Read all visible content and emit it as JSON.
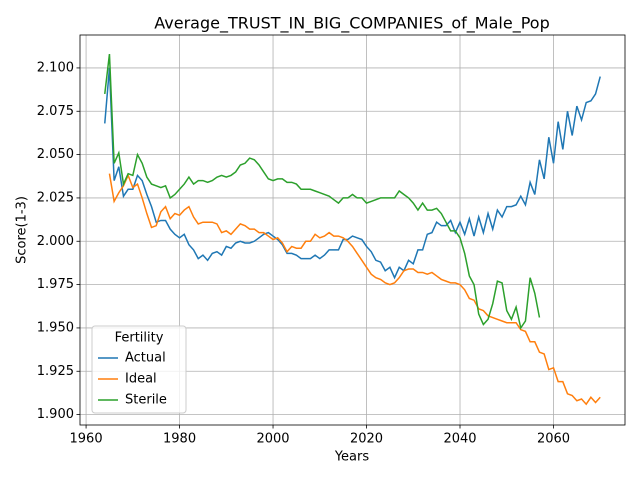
{
  "chart_data": {
    "type": "line",
    "title": "Average_TRUST_IN_BIG_COMPANIES_of_Male_Pop",
    "x_label": "Years",
    "y_label": "Score(1-3)",
    "legend_title": "Fertility",
    "legend_position": "lower left",
    "grid": true,
    "x": [
      1964,
      1965,
      1966,
      1967,
      1968,
      1969,
      1970,
      1971,
      1972,
      1973,
      1974,
      1975,
      1976,
      1977,
      1978,
      1979,
      1980,
      1981,
      1982,
      1983,
      1984,
      1985,
      1986,
      1987,
      1988,
      1989,
      1990,
      1991,
      1992,
      1993,
      1994,
      1995,
      1996,
      1997,
      1998,
      1999,
      2000,
      2001,
      2002,
      2003,
      2004,
      2005,
      2006,
      2007,
      2008,
      2009,
      2010,
      2011,
      2012,
      2013,
      2014,
      2015,
      2016,
      2017,
      2018,
      2019,
      2020,
      2021,
      2022,
      2023,
      2024,
      2025,
      2026,
      2027,
      2028,
      2029,
      2030,
      2031,
      2032,
      2033,
      2034,
      2035,
      2036,
      2037,
      2038,
      2039,
      2040,
      2041,
      2042,
      2043,
      2044,
      2045,
      2046,
      2047,
      2048,
      2049,
      2050,
      2051,
      2052,
      2053,
      2054,
      2055,
      2056,
      2057,
      2058,
      2059,
      2060,
      2061,
      2062,
      2063,
      2064,
      2065,
      2066,
      2067,
      2068,
      2069,
      2070
    ],
    "series": [
      {
        "name": "Actual",
        "color": "#1f77b4",
        "values": [
          2.068,
          2.1,
          2.035,
          2.043,
          2.026,
          2.03,
          2.03,
          2.038,
          2.035,
          2.027,
          2.02,
          2.011,
          2.012,
          2.012,
          2.007,
          2.004,
          2.002,
          2.004,
          1.998,
          1.995,
          1.99,
          1.992,
          1.989,
          1.993,
          1.994,
          1.992,
          1.997,
          1.996,
          1.999,
          2.0,
          1.999,
          1.999,
          2.0,
          2.002,
          2.004,
          2.005,
          2.003,
          2.001,
          1.998,
          1.993,
          1.993,
          1.992,
          1.99,
          1.99,
          1.99,
          1.992,
          1.99,
          1.992,
          1.995,
          1.995,
          1.995,
          2.001,
          2.001,
          2.003,
          2.002,
          2.001,
          1.997,
          1.994,
          1.989,
          1.988,
          1.983,
          1.985,
          1.979,
          1.985,
          1.983,
          1.989,
          1.987,
          1.995,
          1.995,
          2.004,
          2.005,
          2.011,
          2.009,
          2.009,
          2.012,
          2.005,
          2.011,
          2.004,
          2.013,
          2.003,
          2.014,
          2.005,
          2.016,
          2.007,
          2.018,
          2.014,
          2.02,
          2.02,
          2.021,
          2.026,
          2.021,
          2.034,
          2.027,
          2.047,
          2.036,
          2.06,
          2.045,
          2.069,
          2.053,
          2.075,
          2.061,
          2.078,
          2.07,
          2.08,
          2.081,
          2.085,
          2.095
        ]
      },
      {
        "name": "Ideal",
        "color": "#ff7f0e",
        "values": [
          null,
          2.039,
          2.023,
          2.028,
          2.032,
          2.038,
          2.031,
          2.033,
          2.025,
          2.016,
          2.008,
          2.009,
          2.017,
          2.02,
          2.013,
          2.016,
          2.015,
          2.018,
          2.02,
          2.014,
          2.01,
          2.011,
          2.011,
          2.011,
          2.01,
          2.005,
          2.006,
          2.004,
          2.007,
          2.01,
          2.009,
          2.007,
          2.007,
          2.005,
          2.005,
          2.003,
          2.001,
          2.002,
          1.999,
          1.994,
          1.997,
          1.996,
          1.996,
          2.0,
          2.0,
          2.004,
          2.002,
          2.003,
          2.005,
          2.003,
          2.003,
          2.002,
          2.0,
          1.997,
          1.993,
          1.989,
          1.985,
          1.981,
          1.979,
          1.978,
          1.976,
          1.975,
          1.976,
          1.979,
          1.983,
          1.984,
          1.984,
          1.982,
          1.982,
          1.981,
          1.982,
          1.98,
          1.978,
          1.977,
          1.976,
          1.976,
          1.975,
          1.972,
          1.967,
          1.966,
          1.961,
          1.96,
          1.957,
          1.956,
          1.955,
          1.954,
          1.953,
          1.953,
          1.953,
          1.949,
          1.948,
          1.942,
          1.942,
          1.936,
          1.935,
          1.926,
          1.927,
          1.919,
          1.919,
          1.912,
          1.911,
          1.908,
          1.909,
          1.906,
          1.91,
          1.907,
          1.91
        ]
      },
      {
        "name": "Sterile",
        "color": "#2ca02c",
        "values": [
          2.085,
          2.108,
          2.045,
          2.051,
          2.033,
          2.039,
          2.038,
          2.05,
          2.045,
          2.037,
          2.033,
          2.032,
          2.031,
          2.032,
          2.025,
          2.027,
          2.03,
          2.033,
          2.037,
          2.033,
          2.035,
          2.035,
          2.034,
          2.035,
          2.037,
          2.038,
          2.037,
          2.038,
          2.04,
          2.044,
          2.045,
          2.048,
          2.047,
          2.044,
          2.04,
          2.036,
          2.035,
          2.036,
          2.036,
          2.034,
          2.034,
          2.033,
          2.03,
          2.03,
          2.03,
          2.029,
          2.028,
          2.027,
          2.026,
          2.024,
          2.022,
          2.025,
          2.025,
          2.027,
          2.025,
          2.025,
          2.022,
          2.023,
          2.024,
          2.025,
          2.025,
          2.025,
          2.025,
          2.029,
          2.027,
          2.025,
          2.022,
          2.018,
          2.022,
          2.018,
          2.018,
          2.019,
          2.016,
          2.011,
          2.006,
          2.006,
          2.002,
          1.993,
          1.98,
          1.975,
          1.958,
          1.952,
          1.955,
          1.964,
          1.977,
          1.976,
          1.96,
          1.955,
          1.962,
          1.95,
          1.954,
          1.979,
          1.97,
          1.956,
          null,
          null,
          null,
          null,
          null,
          null,
          null,
          null,
          null,
          null,
          null,
          null,
          null
        ]
      }
    ],
    "xlim": [
      1958.7,
      2075.3
    ],
    "xticks": [
      1960,
      1980,
      2000,
      2020,
      2040,
      2060
    ],
    "ylim": [
      1.894,
      2.119
    ],
    "yticks": [
      {
        "value": 1.9,
        "label": "1.900"
      },
      {
        "value": 1.925,
        "label": "1.925"
      },
      {
        "value": 1.95,
        "label": "1.950"
      },
      {
        "value": 1.975,
        "label": "1.975"
      },
      {
        "value": 2.0,
        "label": "2.000"
      },
      {
        "value": 2.025,
        "label": "2.025"
      },
      {
        "value": 2.05,
        "label": "2.050"
      },
      {
        "value": 2.075,
        "label": "2.075"
      },
      {
        "value": 2.1,
        "label": "2.100"
      }
    ]
  }
}
